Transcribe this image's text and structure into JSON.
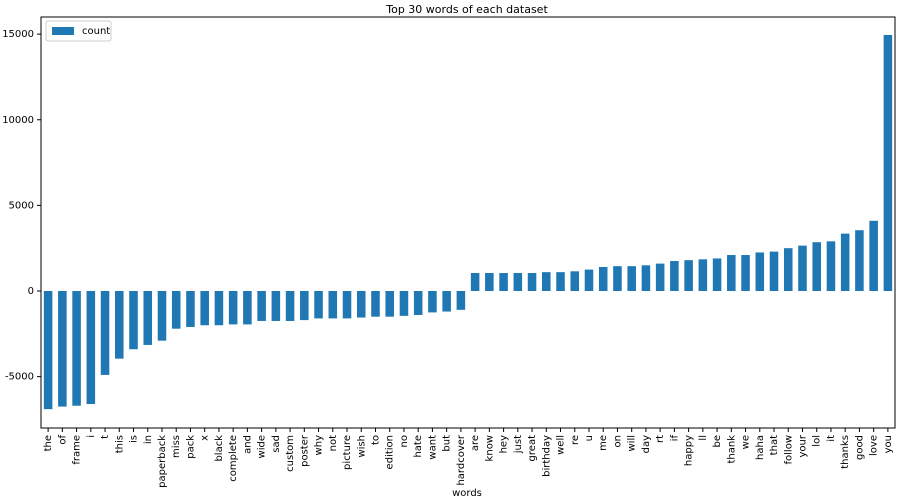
{
  "chart_data": {
    "type": "bar",
    "title": "Top 30 words of each dataset",
    "x_label": "words",
    "categories": [
      "the",
      "of",
      "frame",
      "i",
      "t",
      "this",
      "is",
      "in",
      "paperback",
      "miss",
      "pack",
      "x",
      "black",
      "complete",
      "and",
      "wide",
      "sad",
      "custom",
      "poster",
      "why",
      "not",
      "picture",
      "wish",
      "to",
      "edition",
      "no",
      "hate",
      "want",
      "but",
      "hardcover",
      "are",
      "know",
      "hey",
      "just",
      "great",
      "birthday",
      "well",
      "re",
      "u",
      "me",
      "on",
      "will",
      "day",
      "rt",
      "if",
      "happy",
      "ll",
      "be",
      "thank",
      "we",
      "haha",
      "that",
      "follow",
      "your",
      "lol",
      "it",
      "thanks",
      "good",
      "love",
      "you"
    ],
    "series": [
      {
        "name": "count",
        "color": "#1f77b4",
        "values": [
          -6900,
          -6750,
          -6700,
          -6600,
          -4900,
          -3950,
          -3400,
          -3150,
          -2900,
          -2200,
          -2100,
          -2000,
          -2000,
          -1950,
          -1950,
          -1750,
          -1750,
          -1750,
          -1700,
          -1600,
          -1600,
          -1600,
          -1550,
          -1500,
          -1500,
          -1450,
          -1400,
          -1250,
          -1200,
          -1100,
          1050,
          1050,
          1050,
          1050,
          1050,
          1100,
          1100,
          1150,
          1250,
          1400,
          1450,
          1450,
          1500,
          1600,
          1750,
          1800,
          1850,
          1900,
          2100,
          2100,
          2250,
          2300,
          2500,
          2650,
          2850,
          2900,
          3350,
          3550,
          4100,
          14950
        ]
      }
    ],
    "ylim": [
      -8000,
      16000
    ],
    "yticks": [
      -5000,
      0,
      5000,
      10000,
      15000
    ],
    "grid": false,
    "legend": "upper left"
  }
}
